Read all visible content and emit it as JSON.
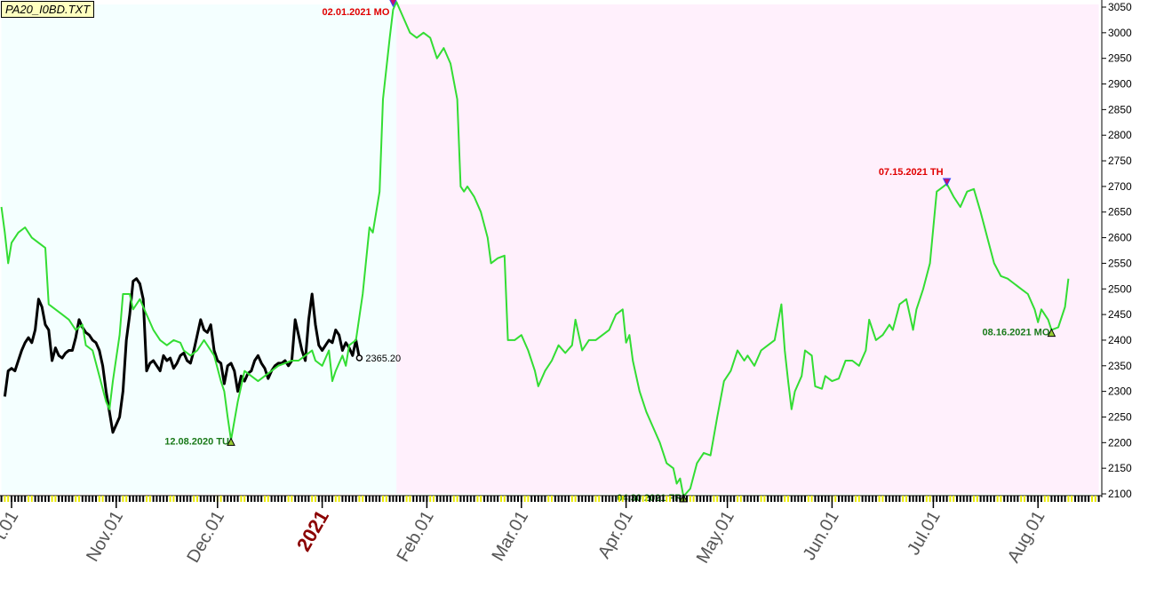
{
  "title": "PA20_I0BD.TXT",
  "chart_data": {
    "type": "line",
    "title": "PA20_I0BD.TXT",
    "xlabel": "",
    "ylabel": "",
    "ylim": [
      2100,
      3050
    ],
    "y_ticks": [
      3050,
      3000,
      2950,
      2900,
      2850,
      2800,
      2750,
      2700,
      2650,
      2600,
      2550,
      2500,
      2450,
      2400,
      2350,
      2300,
      2250,
      2200,
      2150,
      2100
    ],
    "x_ticks": [
      {
        "label": "t.01",
        "day": 0
      },
      {
        "label": "Nov.01",
        "day": 31
      },
      {
        "label": "Dec.01",
        "day": 61
      },
      {
        "label": "2021",
        "day": 92,
        "year": true
      },
      {
        "label": "Feb.01",
        "day": 123
      },
      {
        "label": "Mar.01",
        "day": 151
      },
      {
        "label": "Apr.01",
        "day": 182
      },
      {
        "label": "May.01",
        "day": 212
      },
      {
        "label": "Jun.01",
        "day": 243
      },
      {
        "label": "Jul.01",
        "day": 273
      },
      {
        "label": "Aug.01",
        "day": 304
      }
    ],
    "regions": [
      {
        "name": "history",
        "from_day": -3,
        "to_day": 114,
        "color": "#f4ffff"
      },
      {
        "name": "forecast",
        "from_day": 114,
        "to_day": 322,
        "color": "#fff0fc"
      }
    ],
    "grid": false,
    "legend": "none",
    "series": [
      {
        "color": "#000000",
        "points": [
          [
            -2,
            2290
          ],
          [
            -1,
            2340
          ],
          [
            0,
            2345
          ],
          [
            1,
            2340
          ],
          [
            2,
            2360
          ],
          [
            3,
            2380
          ],
          [
            4,
            2395
          ],
          [
            5,
            2405
          ],
          [
            6,
            2395
          ],
          [
            7,
            2420
          ],
          [
            8,
            2480
          ],
          [
            9,
            2465
          ],
          [
            10,
            2430
          ],
          [
            11,
            2420
          ],
          [
            12,
            2360
          ],
          [
            13,
            2385
          ],
          [
            14,
            2370
          ],
          [
            15,
            2365
          ],
          [
            16,
            2375
          ],
          [
            17,
            2380
          ],
          [
            18,
            2380
          ],
          [
            19,
            2405
          ],
          [
            20,
            2440
          ],
          [
            21,
            2425
          ],
          [
            22,
            2415
          ],
          [
            23,
            2410
          ],
          [
            24,
            2400
          ],
          [
            25,
            2395
          ],
          [
            26,
            2380
          ],
          [
            27,
            2350
          ],
          [
            28,
            2300
          ],
          [
            29,
            2260
          ],
          [
            30,
            2220
          ],
          [
            31,
            2235
          ],
          [
            32,
            2250
          ],
          [
            33,
            2300
          ],
          [
            34,
            2400
          ],
          [
            35,
            2450
          ],
          [
            36,
            2515
          ],
          [
            37,
            2520
          ],
          [
            38,
            2510
          ],
          [
            39,
            2480
          ],
          [
            40,
            2340
          ],
          [
            41,
            2355
          ],
          [
            42,
            2360
          ],
          [
            43,
            2350
          ],
          [
            44,
            2340
          ],
          [
            45,
            2370
          ],
          [
            46,
            2360
          ],
          [
            47,
            2365
          ],
          [
            48,
            2345
          ],
          [
            49,
            2355
          ],
          [
            50,
            2370
          ],
          [
            51,
            2375
          ],
          [
            52,
            2360
          ],
          [
            53,
            2355
          ],
          [
            54,
            2380
          ],
          [
            55,
            2410
          ],
          [
            56,
            2440
          ],
          [
            57,
            2420
          ],
          [
            58,
            2415
          ],
          [
            59,
            2430
          ],
          [
            60,
            2380
          ],
          [
            61,
            2360
          ],
          [
            62,
            2355
          ],
          [
            63,
            2315
          ],
          [
            64,
            2350
          ],
          [
            65,
            2355
          ],
          [
            66,
            2340
          ],
          [
            67,
            2300
          ],
          [
            68,
            2330
          ],
          [
            69,
            2320
          ],
          [
            70,
            2335
          ],
          [
            71,
            2340
          ],
          [
            72,
            2360
          ],
          [
            73,
            2370
          ],
          [
            74,
            2355
          ],
          [
            75,
            2345
          ],
          [
            76,
            2325
          ],
          [
            77,
            2340
          ],
          [
            78,
            2350
          ],
          [
            79,
            2355
          ],
          [
            80,
            2355
          ],
          [
            81,
            2360
          ],
          [
            82,
            2350
          ],
          [
            83,
            2360
          ],
          [
            84,
            2440
          ],
          [
            85,
            2410
          ],
          [
            86,
            2380
          ],
          [
            87,
            2360
          ],
          [
            88,
            2440
          ],
          [
            89,
            2490
          ],
          [
            90,
            2430
          ],
          [
            91,
            2390
          ],
          [
            92,
            2380
          ],
          [
            93,
            2390
          ],
          [
            94,
            2400
          ],
          [
            95,
            2395
          ],
          [
            96,
            2420
          ],
          [
            97,
            2410
          ],
          [
            98,
            2380
          ],
          [
            99,
            2395
          ],
          [
            100,
            2385
          ],
          [
            101,
            2370
          ],
          [
            102,
            2400
          ],
          [
            103,
            2365.2
          ]
        ]
      },
      {
        "color": "#33dd33",
        "points": [
          [
            -3,
            2660
          ],
          [
            -2,
            2610
          ],
          [
            -1,
            2550
          ],
          [
            0,
            2590
          ],
          [
            2,
            2610
          ],
          [
            4,
            2620
          ],
          [
            6,
            2600
          ],
          [
            8,
            2590
          ],
          [
            10,
            2580
          ],
          [
            11,
            2470
          ],
          [
            13,
            2460
          ],
          [
            15,
            2450
          ],
          [
            17,
            2440
          ],
          [
            19,
            2420
          ],
          [
            21,
            2430
          ],
          [
            22,
            2390
          ],
          [
            24,
            2380
          ],
          [
            26,
            2330
          ],
          [
            28,
            2280
          ],
          [
            29,
            2265
          ],
          [
            30,
            2320
          ],
          [
            32,
            2410
          ],
          [
            33,
            2490
          ],
          [
            35,
            2490
          ],
          [
            36,
            2460
          ],
          [
            38,
            2480
          ],
          [
            40,
            2450
          ],
          [
            42,
            2420
          ],
          [
            44,
            2400
          ],
          [
            46,
            2390
          ],
          [
            48,
            2400
          ],
          [
            50,
            2395
          ],
          [
            51,
            2380
          ],
          [
            53,
            2370
          ],
          [
            55,
            2380
          ],
          [
            57,
            2400
          ],
          [
            58,
            2390
          ],
          [
            60,
            2370
          ],
          [
            62,
            2320
          ],
          [
            63,
            2300
          ],
          [
            64,
            2250
          ],
          [
            65,
            2205
          ],
          [
            67,
            2280
          ],
          [
            69,
            2340
          ],
          [
            71,
            2330
          ],
          [
            73,
            2320
          ],
          [
            75,
            2330
          ],
          [
            77,
            2340
          ],
          [
            79,
            2350
          ],
          [
            81,
            2355
          ],
          [
            83,
            2360
          ],
          [
            85,
            2360
          ],
          [
            87,
            2370
          ],
          [
            89,
            2380
          ],
          [
            90,
            2360
          ],
          [
            92,
            2350
          ],
          [
            94,
            2380
          ],
          [
            95,
            2320
          ],
          [
            96,
            2340
          ],
          [
            98,
            2370
          ],
          [
            99,
            2350
          ],
          [
            100,
            2390
          ],
          [
            102,
            2400
          ],
          [
            104,
            2490
          ],
          [
            106,
            2620
          ],
          [
            107,
            2610
          ],
          [
            109,
            2690
          ],
          [
            110,
            2870
          ],
          [
            112,
            2990
          ],
          [
            113,
            3045
          ],
          [
            114,
            3060
          ],
          [
            116,
            3030
          ],
          [
            118,
            3000
          ],
          [
            120,
            2990
          ],
          [
            122,
            3000
          ],
          [
            124,
            2990
          ],
          [
            126,
            2950
          ],
          [
            128,
            2970
          ],
          [
            130,
            2940
          ],
          [
            132,
            2870
          ],
          [
            133,
            2700
          ],
          [
            134,
            2690
          ],
          [
            135,
            2700
          ],
          [
            137,
            2680
          ],
          [
            139,
            2650
          ],
          [
            141,
            2600
          ],
          [
            142,
            2550
          ],
          [
            144,
            2560
          ],
          [
            146,
            2565
          ],
          [
            147,
            2400
          ],
          [
            149,
            2400
          ],
          [
            151,
            2410
          ],
          [
            153,
            2380
          ],
          [
            155,
            2340
          ],
          [
            156,
            2310
          ],
          [
            158,
            2340
          ],
          [
            160,
            2360
          ],
          [
            162,
            2390
          ],
          [
            164,
            2375
          ],
          [
            166,
            2390
          ],
          [
            167,
            2440
          ],
          [
            169,
            2380
          ],
          [
            171,
            2400
          ],
          [
            173,
            2400
          ],
          [
            175,
            2410
          ],
          [
            177,
            2420
          ],
          [
            179,
            2450
          ],
          [
            181,
            2460
          ],
          [
            182,
            2395
          ],
          [
            183,
            2410
          ],
          [
            184,
            2360
          ],
          [
            186,
            2300
          ],
          [
            188,
            2260
          ],
          [
            190,
            2230
          ],
          [
            192,
            2200
          ],
          [
            194,
            2160
          ],
          [
            196,
            2150
          ],
          [
            197,
            2120
          ],
          [
            198,
            2130
          ],
          [
            199,
            2095
          ],
          [
            201,
            2110
          ],
          [
            203,
            2160
          ],
          [
            205,
            2180
          ],
          [
            207,
            2175
          ],
          [
            209,
            2250
          ],
          [
            211,
            2320
          ],
          [
            213,
            2340
          ],
          [
            215,
            2380
          ],
          [
            217,
            2360
          ],
          [
            218,
            2370
          ],
          [
            220,
            2350
          ],
          [
            222,
            2380
          ],
          [
            224,
            2390
          ],
          [
            226,
            2400
          ],
          [
            228,
            2470
          ],
          [
            229,
            2380
          ],
          [
            230,
            2320
          ],
          [
            231,
            2265
          ],
          [
            232,
            2300
          ],
          [
            234,
            2330
          ],
          [
            235,
            2380
          ],
          [
            237,
            2370
          ],
          [
            238,
            2310
          ],
          [
            240,
            2305
          ],
          [
            241,
            2330
          ],
          [
            243,
            2320
          ],
          [
            245,
            2325
          ],
          [
            247,
            2360
          ],
          [
            249,
            2360
          ],
          [
            251,
            2350
          ],
          [
            253,
            2380
          ],
          [
            254,
            2440
          ],
          [
            256,
            2400
          ],
          [
            258,
            2410
          ],
          [
            260,
            2430
          ],
          [
            261,
            2420
          ],
          [
            263,
            2470
          ],
          [
            265,
            2480
          ],
          [
            267,
            2420
          ],
          [
            268,
            2460
          ],
          [
            270,
            2500
          ],
          [
            272,
            2550
          ],
          [
            274,
            2690
          ],
          [
            276,
            2700
          ],
          [
            277,
            2705
          ],
          [
            279,
            2680
          ],
          [
            281,
            2660
          ],
          [
            283,
            2690
          ],
          [
            285,
            2695
          ],
          [
            287,
            2650
          ],
          [
            289,
            2600
          ],
          [
            291,
            2550
          ],
          [
            293,
            2525
          ],
          [
            295,
            2520
          ],
          [
            297,
            2510
          ],
          [
            299,
            2500
          ],
          [
            301,
            2490
          ],
          [
            303,
            2460
          ],
          [
            304,
            2435
          ],
          [
            305,
            2460
          ],
          [
            307,
            2440
          ],
          [
            308,
            2420
          ],
          [
            310,
            2425
          ],
          [
            312,
            2465
          ],
          [
            313,
            2520
          ]
        ]
      }
    ],
    "annotations": [
      {
        "label": "02.01.2021 MO",
        "day": 113,
        "value": 3055,
        "kind": "peak",
        "color": "#e00000"
      },
      {
        "label": "07.15.2021 TH",
        "day": 277,
        "value": 2705,
        "kind": "peak",
        "color": "#e00000"
      },
      {
        "label": "12.08.2020 TU",
        "day": 65,
        "value": 2205,
        "kind": "trough",
        "color": "#1a7a1a"
      },
      {
        "label": "04.30.2021 FR",
        "day": 199,
        "value": 2095,
        "kind": "trough",
        "color": "#1a7a1a"
      },
      {
        "label": "08.16.2021 MO",
        "day": 308,
        "value": 2418,
        "kind": "trough",
        "color": "#1a7a1a"
      },
      {
        "label": "2365.20",
        "day": 103,
        "value": 2365.2,
        "kind": "last",
        "color": "#000000"
      }
    ]
  }
}
